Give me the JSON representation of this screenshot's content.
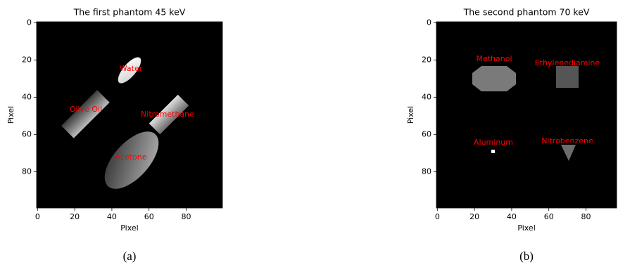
{
  "chart_data": [
    {
      "type": "image",
      "title": "The first phantom 45 keV",
      "xlabel": "Pixel",
      "ylabel": "Pixel",
      "caption": "(a)",
      "xlim": [
        -0.5,
        99.5
      ],
      "ylim": [
        99.5,
        -0.5
      ],
      "xticks": [
        0,
        20,
        40,
        60,
        80
      ],
      "yticks": [
        0,
        20,
        40,
        60,
        80
      ],
      "annotations": [
        "Water",
        "Olive Oil",
        "Nitromethane",
        "Acetone"
      ],
      "annotation_color": "#ff0000"
    },
    {
      "type": "image",
      "title": "The second phantom 70 keV",
      "xlabel": "Pixel",
      "ylabel": "Pixel",
      "caption": "(b)",
      "xlim": [
        -0.5,
        96.5
      ],
      "ylim": [
        99.5,
        -0.5
      ],
      "xticks": [
        0,
        20,
        40,
        60,
        80
      ],
      "yticks": [
        0,
        20,
        40,
        60,
        80
      ],
      "annotations": [
        "Methanol",
        "Ethylenediamine",
        "Aluminum",
        "Nitrobenzene"
      ],
      "annotation_color": "#ff0000"
    }
  ]
}
